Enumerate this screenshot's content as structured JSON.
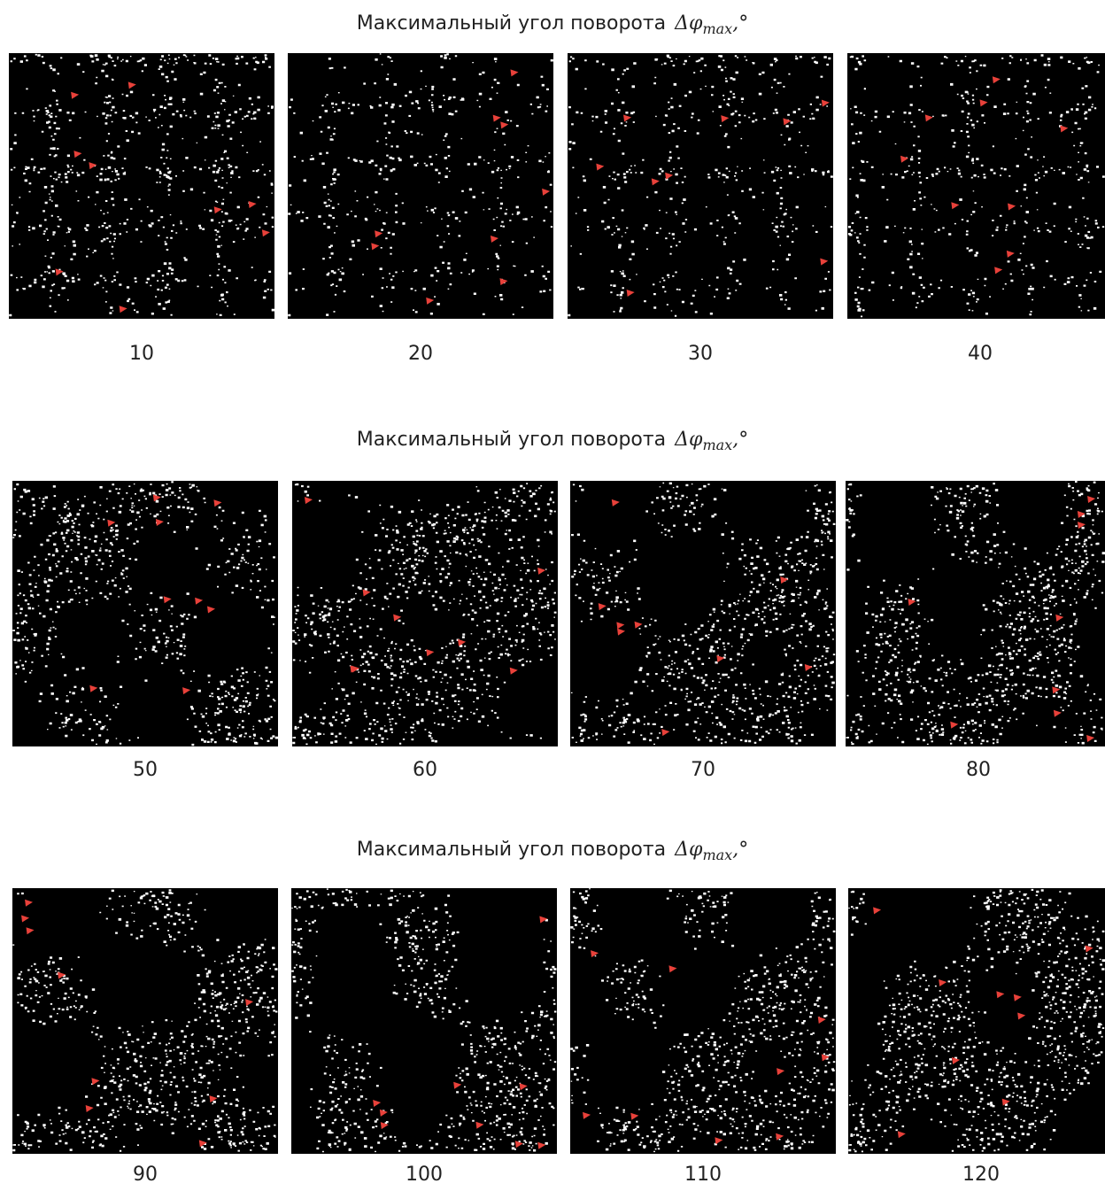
{
  "rows": [
    {
      "title": {
        "text": "Максимальный угол поворота",
        "symbol": "Δφ",
        "subscript": "max",
        "suffix": ",°"
      },
      "labels": [
        "10",
        "20",
        "30",
        "40"
      ]
    },
    {
      "title": {
        "text": "Максимальный угол поворота",
        "symbol": "Δφ",
        "subscript": "max",
        "suffix": ",°"
      },
      "labels": [
        "50",
        "60",
        "70",
        "80"
      ]
    },
    {
      "title": {
        "text": "Максимальный угол поворота",
        "symbol": "Δφ",
        "subscript": "max",
        "suffix": ",°"
      },
      "labels": [
        "90",
        "100",
        "110",
        "120"
      ]
    }
  ]
}
